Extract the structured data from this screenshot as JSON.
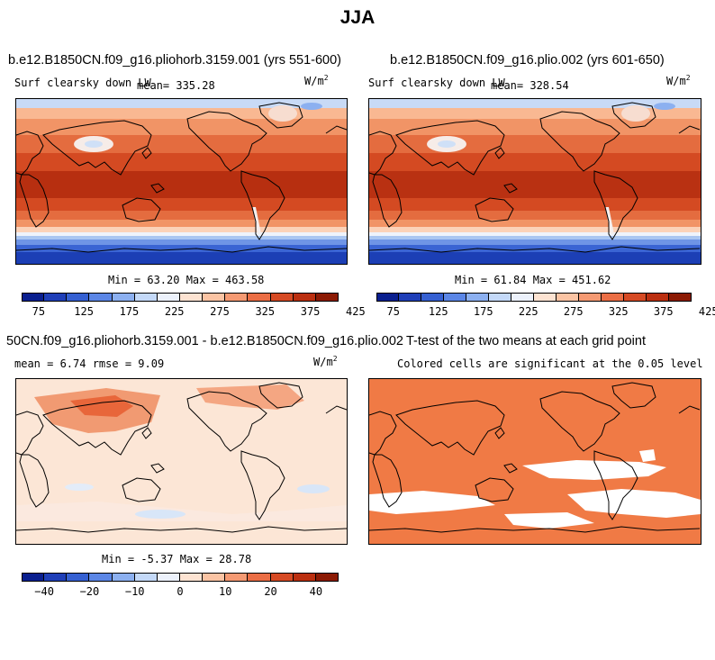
{
  "suptitle": "JJA",
  "panels": [
    {
      "title": "b.e12.B1850CN.f09_g16.pliohorb.3159.001 (yrs 551-600)",
      "left_label": "Surf clearsky down LW",
      "center_label": "mean= 335.28",
      "units": "W/m",
      "units_exp": "2",
      "minmax": "Min =  63.20 Max = 463.58",
      "kind": "absolute"
    },
    {
      "title": "b.e12.B1850CN.f09_g16.plio.002 (yrs 601-650)",
      "left_label": "Surf clearsky down LW",
      "center_label": "mean= 328.54",
      "units": "W/m",
      "units_exp": "2",
      "minmax": "Min =  61.84 Max = 451.62",
      "kind": "absolute"
    },
    {
      "title": "50CN.f09_g16.pliohorb.3159.001 - b.e12.B1850CN.f09_g16.plio.002",
      "left_label": "mean =   6.74     rmse =   9.09",
      "units": "W/m",
      "units_exp": "2",
      "minmax": "Min =  -5.37 Max =  28.78",
      "kind": "difference"
    },
    {
      "title": "T-test of the two means at each grid point",
      "left_label": "Colored cells are significant at the 0.05 level",
      "kind": "ttest"
    }
  ],
  "colorbar_abs": {
    "colors": [
      "#0a1f8f",
      "#1f3fb8",
      "#3560d2",
      "#5b86e6",
      "#8cb0f0",
      "#c4d9f8",
      "#ecf1fb",
      "#fde3d2",
      "#fbc4a4",
      "#f59a73",
      "#eb6e45",
      "#d64a24",
      "#bb2f10",
      "#8c1a04"
    ],
    "tick_labels": [
      "75",
      "125",
      "175",
      "225",
      "275",
      "325",
      "375",
      "425"
    ]
  },
  "colorbar_diff": {
    "colors": [
      "#0a1f8f",
      "#1f3fb8",
      "#3560d2",
      "#5b86e6",
      "#8cb0f0",
      "#c4d9f8",
      "#ecf1fb",
      "#fde3d2",
      "#fbc4a4",
      "#f59a73",
      "#eb6e45",
      "#d64a24",
      "#bb2f10",
      "#8c1a04"
    ],
    "tick_labels": [
      "−40",
      "−20",
      "−10",
      "0",
      "10",
      "20",
      "40"
    ]
  },
  "colors": {
    "ttest_fill": "#f07a45",
    "diff_bg": "#fce6d6",
    "diff_hot": "#e8663a",
    "abs_tropics": "#c73a16",
    "abs_cold": "#2247b8"
  }
}
